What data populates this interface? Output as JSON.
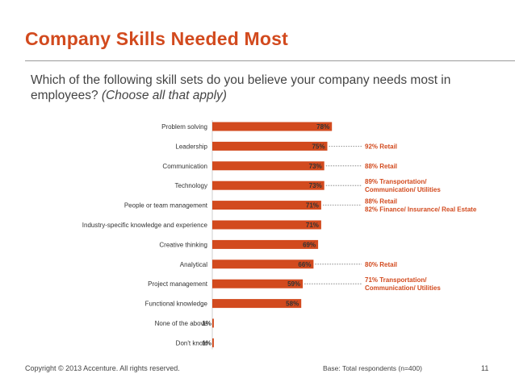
{
  "slide": {
    "title": "Company Skills Needed Most",
    "question_main": "Which of the following skill sets do you believe your company needs most in employees?",
    "question_note": "(Choose all that apply)",
    "copyright": "Copyright © 2013 Accenture. All rights reserved.",
    "base_note": "Base:  Total respondents (n=400)",
    "page_number": "11"
  },
  "colors": {
    "accent": "#d24a1e",
    "bar": "#d24a1e",
    "text": "#333333"
  },
  "chart_data": {
    "type": "bar",
    "orientation": "horizontal",
    "categories": [
      "Problem solving",
      "Leadership",
      "Communication",
      "Technology",
      "People or team management",
      "Industry-specific knowledge and experience",
      "Creative thinking",
      "Analytical",
      "Project management",
      "Functional knowledge",
      "None of the above",
      "Don't know"
    ],
    "values": [
      78,
      75,
      73,
      73,
      71,
      71,
      69,
      66,
      59,
      58,
      1,
      1
    ],
    "value_labels": [
      "78%",
      "75%",
      "73%",
      "73%",
      "71%",
      "71%",
      "69%",
      "66%",
      "59%",
      "58%",
      "1%",
      "1%"
    ],
    "unit": "%",
    "xlim": [
      0,
      100
    ],
    "grid": false,
    "legend": "none",
    "annotations": [
      {
        "category_index": 1,
        "lines": [
          "92% Retail"
        ]
      },
      {
        "category_index": 2,
        "lines": [
          "88% Retail"
        ]
      },
      {
        "category_index": 3,
        "lines": [
          "89% Transportation/",
          "Communication/ Utilities"
        ]
      },
      {
        "category_index": 4,
        "lines": [
          "88% Retail",
          "82% Finance/ Insurance/ Real Estate"
        ]
      },
      {
        "category_index": 7,
        "lines": [
          "80% Retail"
        ]
      },
      {
        "category_index": 8,
        "lines": [
          "71% Transportation/",
          "Communication/ Utilities"
        ]
      }
    ]
  }
}
